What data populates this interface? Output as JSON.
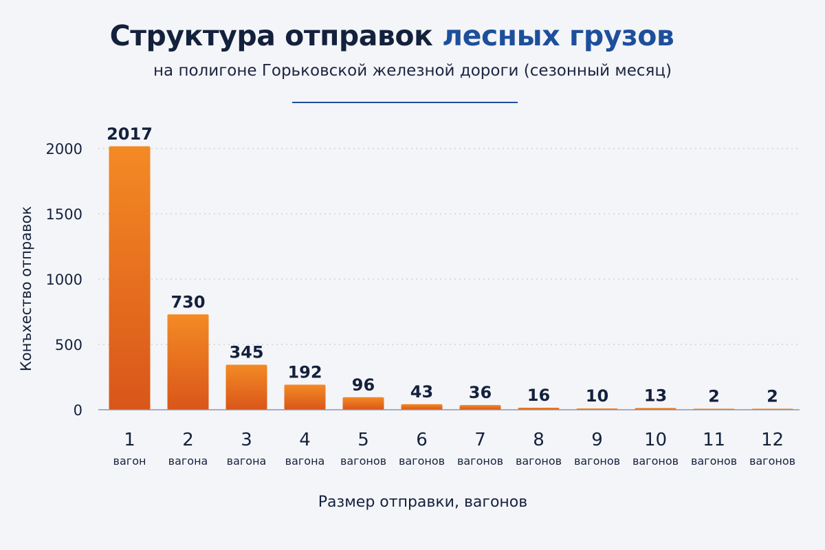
{
  "header": {
    "title_main": "Структура отправок",
    "title_accent": "лесных грузов",
    "subtitle": "на полигоне Горьковской железной дороги (сезонный месяц)"
  },
  "colors": {
    "bar_top": "#f48a24",
    "bar_bottom": "#d9561a",
    "title_accent": "#1d4f9c",
    "text": "#14213d",
    "grid": "#c7cad3"
  },
  "chart_data": {
    "type": "bar",
    "title": "Структура отправок лесных грузов",
    "subtitle": "на полигоне Горьковской железной дороги (сезонный месяц)",
    "xlabel": "Размер отправки, вагонов",
    "ylabel": "Конъхество отправок",
    "ylim": [
      0,
      2000
    ],
    "yticks": [
      0,
      500,
      1000,
      1500,
      2000
    ],
    "grid": true,
    "categories": [
      "1",
      "2",
      "3",
      "4",
      "5",
      "6",
      "7",
      "8",
      "9",
      "10",
      "11",
      "12"
    ],
    "category_units": [
      "вагон",
      "вагона",
      "вагона",
      "вагона",
      "вагонов",
      "вагонов",
      "вагонов",
      "вагонов",
      "вагонов",
      "вагонов",
      "вагонов",
      "вагонов"
    ],
    "values": [
      2017,
      730,
      345,
      192,
      96,
      43,
      36,
      16,
      10,
      13,
      2,
      2
    ],
    "value_labels": [
      "2017",
      "730",
      "345",
      "192",
      "96",
      "43",
      "36",
      "16",
      "10",
      "13",
      "2",
      "2"
    ]
  }
}
